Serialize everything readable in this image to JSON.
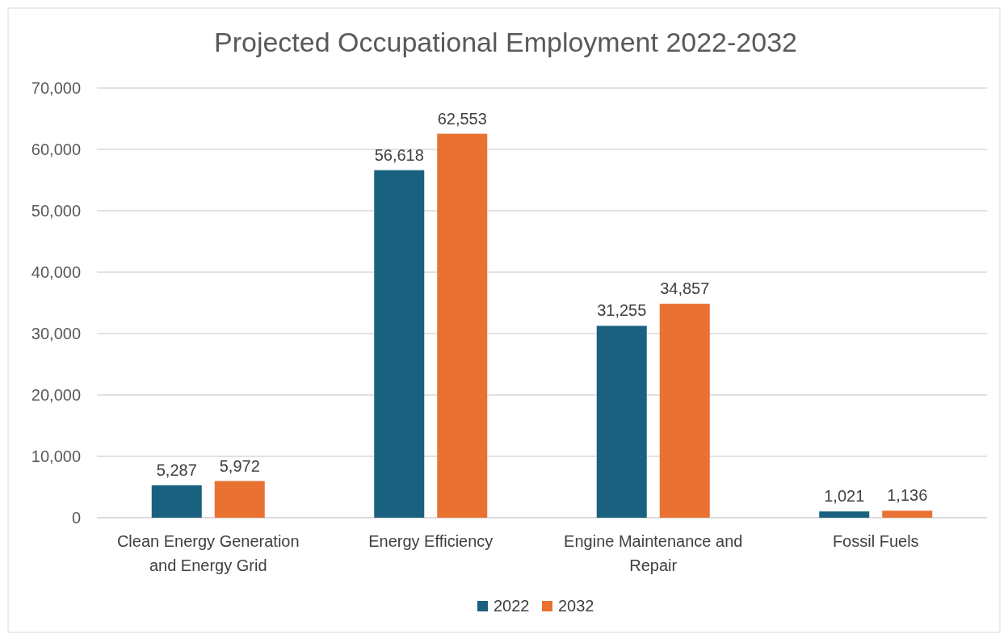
{
  "chart_data": {
    "type": "bar",
    "title": "Projected Occupational Employment 2022-2032",
    "categories": [
      "Clean Energy Generation and Energy Grid",
      "Energy Efficiency",
      "Engine Maintenance and Repair",
      "Fossil Fuels"
    ],
    "series": [
      {
        "name": "2022",
        "color": "#1a6180",
        "values": [
          5287,
          56618,
          31255,
          1021
        ],
        "value_labels": [
          "5,287",
          "56,618",
          "31,255",
          "1,021"
        ]
      },
      {
        "name": "2032",
        "color": "#e97132",
        "values": [
          5972,
          62553,
          34857,
          1136
        ],
        "value_labels": [
          "5,972",
          "62,553",
          "34,857",
          "1,136"
        ]
      }
    ],
    "ylim": [
      0,
      70000
    ],
    "yticks": [
      0,
      {
        "value": 10000,
        "label": "10,000"
      },
      {
        "value": 20000,
        "label": "20,000"
      },
      {
        "value": 30000,
        "label": "30,000"
      },
      {
        "value": 40000,
        "label": "40,000"
      },
      {
        "value": 50000,
        "label": "50,000"
      },
      {
        "value": 60000,
        "label": "60,000"
      },
      {
        "value": 70000,
        "label": "70,000"
      }
    ],
    "grid": "y",
    "legend": "bottom"
  }
}
